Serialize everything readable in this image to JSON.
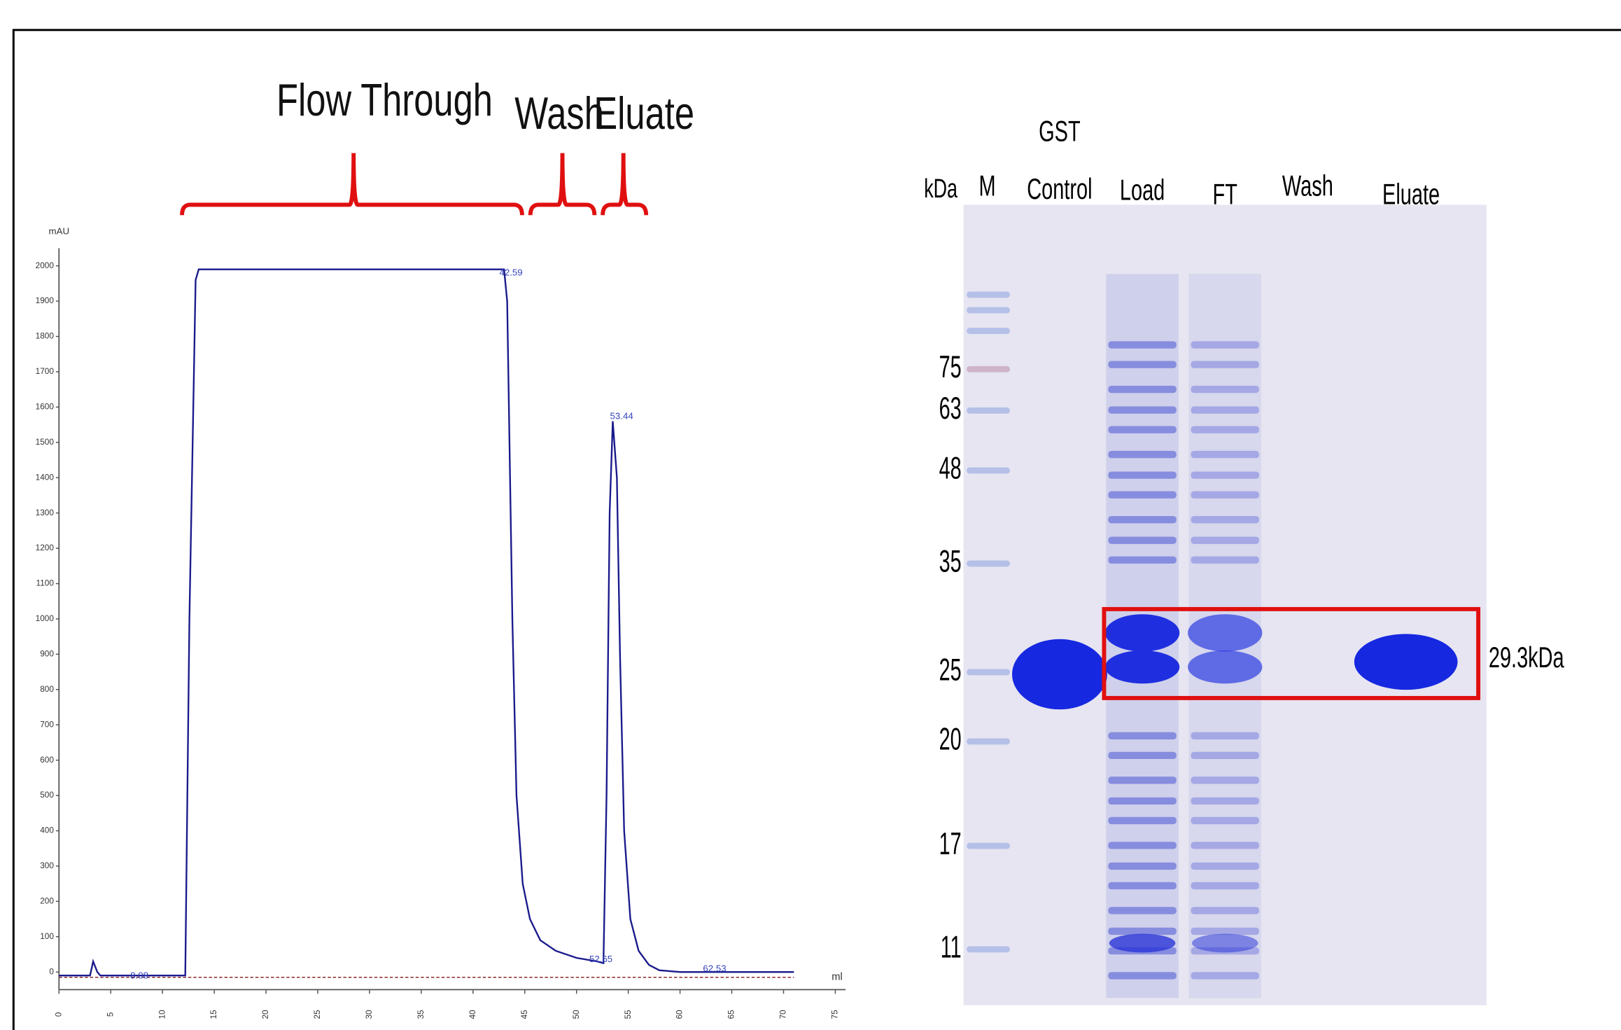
{
  "chart_data": {
    "type": "line",
    "y_label": "mAU",
    "x_label": "ml",
    "xlim": [
      0,
      76
    ],
    "ylim": [
      -50,
      2050
    ],
    "xticks": [
      0,
      5,
      10,
      15,
      20,
      25,
      30,
      35,
      40,
      45,
      50,
      55,
      60,
      65,
      70,
      75
    ],
    "yticks": [
      0,
      100,
      200,
      300,
      400,
      500,
      600,
      700,
      800,
      900,
      1000,
      1100,
      1200,
      1300,
      1400,
      1500,
      1600,
      1700,
      1800,
      1900,
      2000
    ],
    "x": [
      0,
      3,
      3.3,
      3.7,
      4,
      12.2,
      12.6,
      13.2,
      13.5,
      43,
      43.3,
      43.8,
      44.2,
      44.8,
      45.5,
      46.5,
      48,
      50,
      52,
      52.6,
      52.9,
      53.2,
      53.5,
      53.9,
      54.2,
      54.6,
      55.2,
      56,
      57,
      58,
      60,
      65,
      71
    ],
    "series": [
      {
        "color": "#1a1a8c",
        "values": [
          -10,
          -10,
          30,
          0,
          -10,
          -10,
          1000,
          1960,
          1990,
          1990,
          1900,
          1000,
          500,
          250,
          150,
          90,
          60,
          40,
          30,
          25,
          500,
          1300,
          1560,
          1400,
          900,
          400,
          150,
          60,
          20,
          5,
          0,
          0,
          0
        ]
      }
    ],
    "annotations": [
      "Flow Through",
      "Wash",
      "Eluate"
    ],
    "peak_labels": [
      "8.08",
      "42.59",
      "52.65",
      "53.44",
      "62.53"
    ]
  },
  "gel": {
    "unit_label": "kDa",
    "lanes": [
      [
        "M"
      ],
      [
        "GST",
        "Control"
      ],
      [
        "Load"
      ],
      [
        "FT"
      ],
      [
        "Wash"
      ],
      [
        "Eluate"
      ]
    ],
    "markers": [
      75,
      63,
      48,
      35,
      25,
      20,
      17,
      11
    ],
    "band_label": "29.3kDa"
  }
}
